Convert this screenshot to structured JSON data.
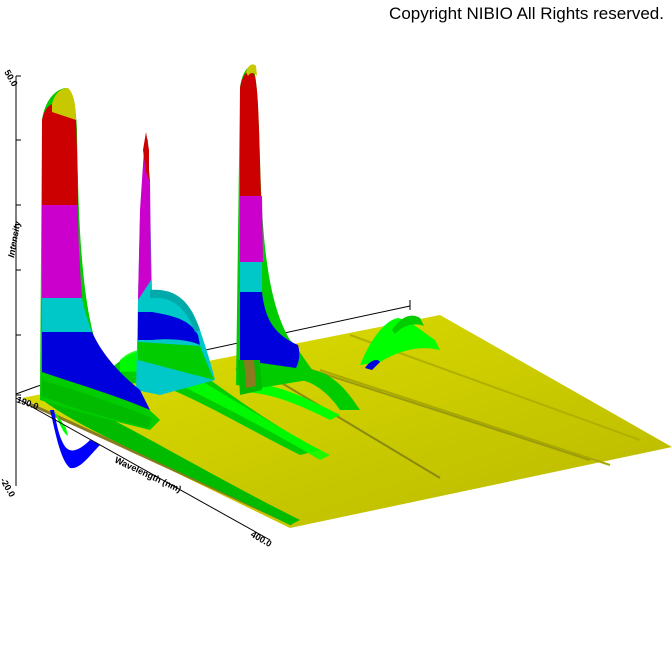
{
  "copyright": "Copyright NIBIO All Rights reserved.",
  "chart_data": {
    "type": "surface3d",
    "title": "",
    "xlabel": "Wavelength (nm)",
    "ylabel": "",
    "zlabel": "Intensity",
    "xlim": [
      190.0,
      400.0
    ],
    "zlim": [
      -20.0,
      50.0
    ],
    "tick_labels": {
      "x_start": "190.0",
      "x_end": "400.0",
      "z_bottom": "-20.0",
      "z_top": "50.0"
    },
    "grid": false,
    "legend": "none",
    "band_colors": [
      "#0000ff",
      "#00cc00",
      "#00ff00",
      "#d4d400",
      "#00c8c8",
      "#0000dd",
      "#cc00cc",
      "#cc0000",
      "#c8c800"
    ],
    "peaks": [
      {
        "wavelength_nm": 199,
        "intensity": 49
      },
      {
        "wavelength_nm": 235,
        "intensity": 35
      },
      {
        "wavelength_nm": 264,
        "intensity": 47
      },
      {
        "wavelength_nm": 330,
        "intensity": 6
      }
    ]
  }
}
